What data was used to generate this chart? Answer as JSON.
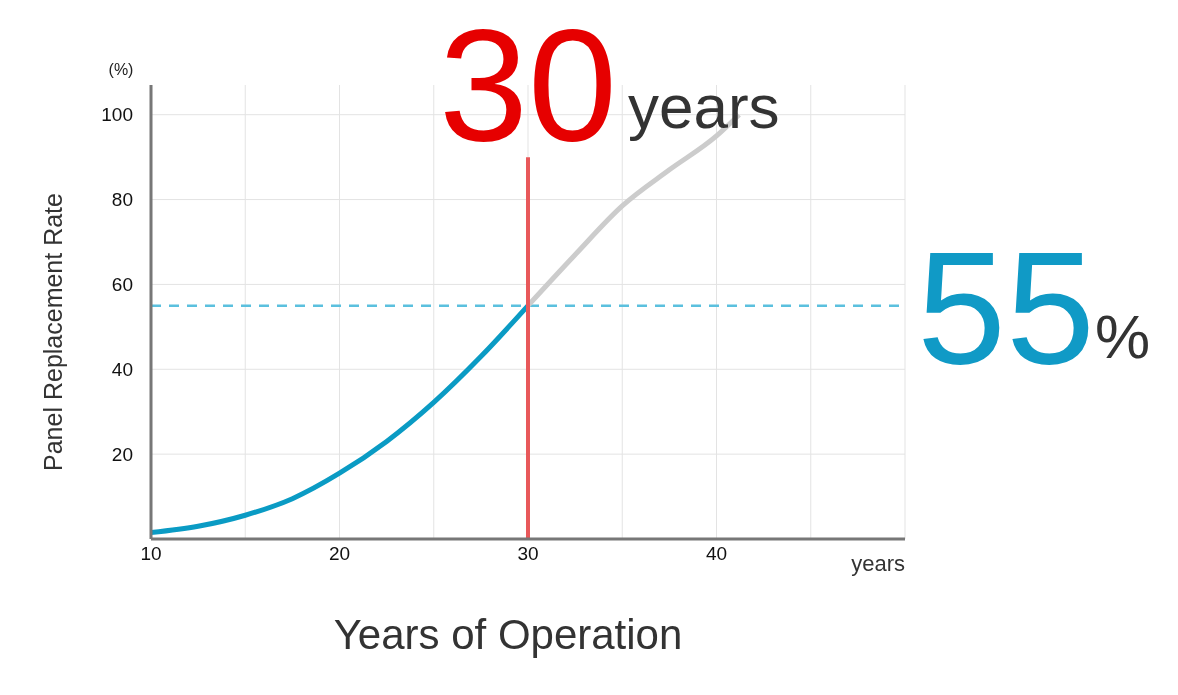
{
  "chart_data": {
    "type": "line",
    "xlabel": "Years of Operation",
    "ylabel": "Panel Replacement Rate",
    "xlim": [
      10,
      50
    ],
    "xticks": [
      10,
      {
        "value": 15,
        "label": null
      },
      20,
      {
        "value": 25,
        "label": null
      },
      30,
      {
        "value": 35,
        "label": null
      },
      40,
      {
        "value": 45,
        "label": null
      },
      {
        "value": 50,
        "label": null
      }
    ],
    "ylim": [
      0,
      107
    ],
    "yticks": [
      20,
      40,
      60,
      80,
      100
    ],
    "grid": true,
    "marker": "none",
    "series": [
      {
        "color": "#0a9bc4",
        "x": [
          10,
          12.5,
          15,
          17.5,
          20,
          22.5,
          25,
          27.5,
          30
        ],
        "values": [
          1.5,
          3,
          5.6,
          9.5,
          15.5,
          23,
          32.2,
          43,
          55
        ]
      },
      {
        "color": "#cccccc",
        "x": [
          30,
          32.5,
          35,
          37.5,
          40,
          41.2
        ],
        "values": [
          55,
          67,
          78.5,
          87,
          95,
          100
        ]
      },
      {
        "color": "#e8585a",
        "x": [
          30,
          30
        ],
        "values": [
          0,
          90
        ]
      }
    ],
    "ref_lines": [
      {
        "axis": "y",
        "value": 55,
        "color": "#5bc0de",
        "line_style": "dashed"
      }
    ],
    "annotations": [
      "(%)",
      "years",
      "30",
      "years",
      "55",
      "%"
    ]
  }
}
